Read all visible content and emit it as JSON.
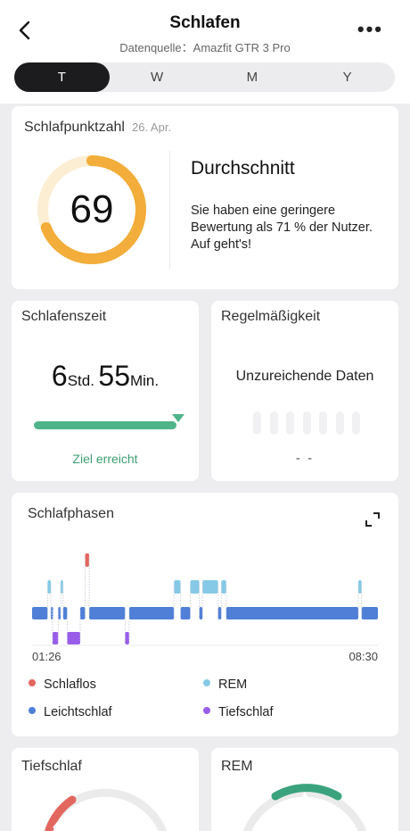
{
  "header": {
    "title": "Schlafen",
    "subtitle": "Datenquelle：Amazfit GTR 3 Pro",
    "back_icon": "chevron-left-icon",
    "more_icon": "more-dots-icon",
    "more_label": "•••",
    "tabs": [
      {
        "label": "T",
        "active": true
      },
      {
        "label": "W",
        "active": false
      },
      {
        "label": "M",
        "active": false
      },
      {
        "label": "Y",
        "active": false
      }
    ]
  },
  "score": {
    "title": "Schlafpunktzahl",
    "date": "26. Apr.",
    "value": "69",
    "fraction": 0.69,
    "level": "Durchschnitt",
    "description": "Sie haben eine geringere Bewertung als 71 % der Nutzer. Auf geht's!",
    "ring_color": "#f2ad3a",
    "ring_track_color": "#fbeed3"
  },
  "sleep_time": {
    "title": "Schlafenszeit",
    "hours": "6",
    "hours_unit": "Std.",
    "minutes": "55",
    "minutes_unit": "Min.",
    "goal_status": "Ziel erreicht",
    "progress": 1.0,
    "color": "#4fb48a"
  },
  "regularity": {
    "title": "Regelmäßigkeit",
    "message": "Unzureichende Daten",
    "value": "- -"
  },
  "phases": {
    "title": "Schlafphasen",
    "expand_icon": "expand-icon",
    "start_time": "01:26",
    "end_time": "08:30",
    "colors": {
      "awake": "#e2675e",
      "rem": "#86c9e6",
      "light": "#4f7fd6",
      "deep": "#9a5de9"
    },
    "legend": [
      {
        "key": "awake",
        "label": "Schlaflos"
      },
      {
        "key": "rem",
        "label": "REM"
      },
      {
        "key": "light",
        "label": "Leichtschlaf"
      },
      {
        "key": "deep",
        "label": "Tiefschlaf"
      }
    ],
    "segments": [
      {
        "stage": "light",
        "start": 0,
        "end": 19
      },
      {
        "stage": "rem",
        "start": 19,
        "end": 23
      },
      {
        "stage": "light",
        "start": 23,
        "end": 25
      },
      {
        "stage": "deep",
        "start": 25,
        "end": 32
      },
      {
        "stage": "light",
        "start": 32,
        "end": 35
      },
      {
        "stage": "rem",
        "start": 35,
        "end": 38
      },
      {
        "stage": "light",
        "start": 38,
        "end": 43
      },
      {
        "stage": "deep",
        "start": 43,
        "end": 59
      },
      {
        "stage": "light",
        "start": 59,
        "end": 65
      },
      {
        "stage": "awake",
        "start": 65,
        "end": 70
      },
      {
        "stage": "light",
        "start": 70,
        "end": 114
      },
      {
        "stage": "deep",
        "start": 114,
        "end": 119
      },
      {
        "stage": "light",
        "start": 119,
        "end": 174
      },
      {
        "stage": "rem",
        "start": 174,
        "end": 182
      },
      {
        "stage": "light",
        "start": 182,
        "end": 194
      },
      {
        "stage": "rem",
        "start": 194,
        "end": 205
      },
      {
        "stage": "light",
        "start": 205,
        "end": 209
      },
      {
        "stage": "rem",
        "start": 209,
        "end": 228
      },
      {
        "stage": "light",
        "start": 228,
        "end": 232
      },
      {
        "stage": "rem",
        "start": 232,
        "end": 238
      },
      {
        "stage": "light",
        "start": 238,
        "end": 400
      },
      {
        "stage": "rem",
        "start": 400,
        "end": 404
      },
      {
        "stage": "light",
        "start": 404,
        "end": 424
      }
    ]
  },
  "deep_sleep": {
    "title": "Tiefschlaf",
    "color": "#e2675e"
  },
  "rem": {
    "title": "REM",
    "color": "#3aa37e"
  }
}
